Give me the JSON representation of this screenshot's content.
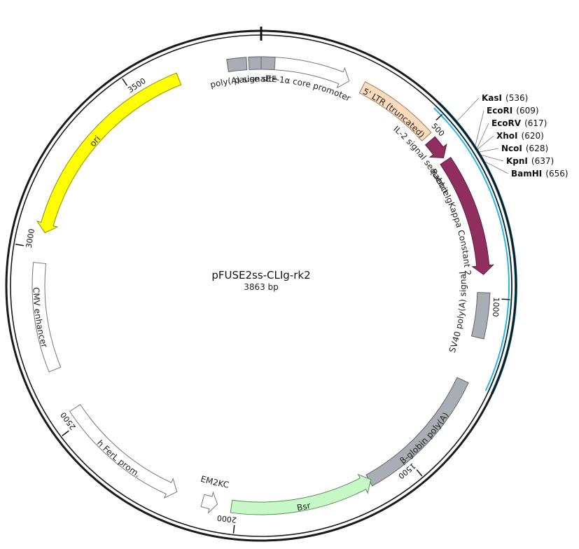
{
  "plasmid": {
    "name": "pFUSE2ss-CLIg-rk2",
    "length_label": "3863 bp",
    "length": 3863
  },
  "ticks": [
    {
      "pos": 500,
      "label": "500"
    },
    {
      "pos": 1000,
      "label": "1000"
    },
    {
      "pos": 1500,
      "label": "1500"
    },
    {
      "pos": 2000,
      "label": "2000"
    },
    {
      "pos": 2500,
      "label": "2500"
    },
    {
      "pos": 3000,
      "label": "3000"
    },
    {
      "pos": 3500,
      "label": "3500"
    }
  ],
  "features": [
    {
      "id": "poly-a-signal",
      "label": "poly(A) signal",
      "start": 3770,
      "end": 3823,
      "ring": 1,
      "arrow": "none",
      "fill": "#a8aeb3",
      "stroke": "#5f666c"
    },
    {
      "id": "pause-site",
      "label": "pause site",
      "start": 3829,
      "end": 3863,
      "ring": 1,
      "arrow": "none",
      "fill": "#a8aeb3",
      "stroke": "#5f666c"
    },
    {
      "id": "pause-site-b",
      "label": "",
      "start": 0,
      "end": 38,
      "ring": 1,
      "arrow": "none",
      "fill": "#a8aeb3",
      "stroke": "#5f666c"
    },
    {
      "id": "ef1a-core-promoter",
      "label": "EF-1α core promoter",
      "start": 38,
      "end": 250,
      "ring": 1,
      "arrow": "cw",
      "fill": "#ffffff",
      "stroke": "#777777"
    },
    {
      "id": "ltr-truncated",
      "label": "5' LTR (truncated)",
      "start": 290,
      "end": 515,
      "ring": 1,
      "arrow": "none",
      "fill": "#fddcbe",
      "stroke": "#a07a55",
      "inside": true
    },
    {
      "id": "il2-signal",
      "label": "IL-2 signal sequence",
      "start": 530,
      "end": 590,
      "ring": 1,
      "arrow": "cw",
      "fill": "#912e60",
      "stroke": "#5e1c3e"
    },
    {
      "id": "rabbit-igkappa",
      "label": "Rabbit IgKappa Constant 2",
      "start": 600,
      "end": 935,
      "ring": 1,
      "arrow": "cw",
      "fill": "#912e60",
      "stroke": "#5e1c3e"
    },
    {
      "id": "sv40-poly-a",
      "label": "SV40 poly(A) signal",
      "start": 985,
      "end": 1110,
      "ring": 1,
      "arrow": "none",
      "fill": "#a8aeb3",
      "stroke": "#5f666c"
    },
    {
      "id": "beta-globin-poly-a",
      "label": "β-globin poly(A)",
      "start": 1235,
      "end": 1620,
      "ring": 1,
      "arrow": "none",
      "fill": "#a8aeb3",
      "stroke": "#5f666c",
      "inside": true
    },
    {
      "id": "bsr",
      "label": "Bsr",
      "start": 1615,
      "end": 2014,
      "ring": 1,
      "arrow": "ccw",
      "fill": "#c7f8c7",
      "stroke": "#5a8f5a",
      "inside": true
    },
    {
      "id": "em2kc",
      "label": "EM2KC",
      "start": 2053,
      "end": 2095,
      "ring": 1,
      "arrow": "ccw",
      "fill": "#ffffff",
      "stroke": "#777777"
    },
    {
      "id": "h-ferl-prom",
      "label": "h FerL prom.",
      "start": 2170,
      "end": 2540,
      "ring": 1,
      "arrow": "ccw",
      "fill": "#ffffff",
      "stroke": "#777777",
      "inside": true
    },
    {
      "id": "cmv-enhancer",
      "label": "CMV enhancer",
      "start": 2660,
      "end": 2960,
      "ring": 1,
      "arrow": "none",
      "fill": "#ffffff",
      "stroke": "#777777",
      "inside": true
    },
    {
      "id": "ori",
      "label": "ori",
      "start": 3045,
      "end": 3630,
      "ring": 1,
      "arrow": "ccw",
      "fill": "#ffff00",
      "stroke": "#8c8c00",
      "inside": true
    }
  ],
  "highlight": {
    "start": 474,
    "end": 1235,
    "color": "#29b6e6"
  },
  "enzymes": [
    {
      "name": "KasI",
      "pos_label": "(536)",
      "pos": 536
    },
    {
      "name": "EcoRI",
      "pos_label": "(609)",
      "pos": 609
    },
    {
      "name": "EcoRV",
      "pos_label": "(617)",
      "pos": 617
    },
    {
      "name": "XhoI",
      "pos_label": "(620)",
      "pos": 620
    },
    {
      "name": "NcoI",
      "pos_label": "(628)",
      "pos": 628
    },
    {
      "name": "KpnI",
      "pos_label": "(637)",
      "pos": 637
    },
    {
      "name": "BamHI",
      "pos_label": "(656)",
      "pos": 656
    }
  ],
  "colors": {
    "backbone": "#1a1a1a",
    "highlight": "#29b6e6"
  }
}
